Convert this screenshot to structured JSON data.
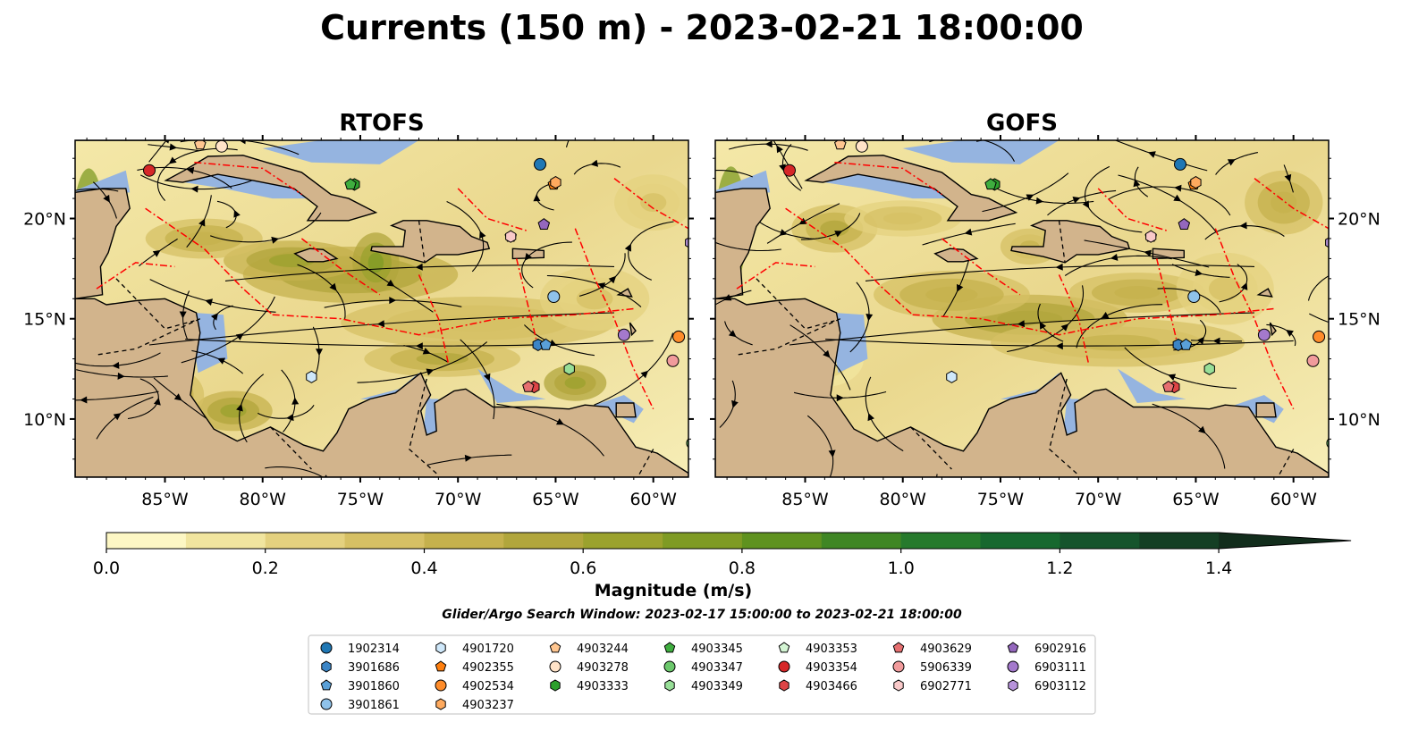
{
  "figure": {
    "title": "Currents (150 m) - 2023-02-21 18:00:00",
    "search_window": "Glider/Argo Search Window: 2023-02-17 15:00:00 to 2023-02-21 18:00:00"
  },
  "colors": {
    "land": "#d2b48c",
    "shallow_water": "#95b4e0",
    "eez_line": "#ff0000",
    "coastline": "#000000"
  },
  "chart_data": {
    "type": "streamplot",
    "panels": [
      {
        "title": "RTOFS"
      },
      {
        "title": "GOFS"
      }
    ],
    "x_ticks": [
      "85°W",
      "80°W",
      "75°W",
      "70°W",
      "65°W",
      "60°W"
    ],
    "x_tick_values": [
      -85,
      -80,
      -75,
      -70,
      -65,
      -60
    ],
    "y_ticks": [
      "20°N",
      "15°N",
      "10°N"
    ],
    "y_tick_values": [
      20,
      15,
      10
    ],
    "xlim": [
      -89.6,
      -58.2
    ],
    "ylim": [
      7.1,
      23.9
    ],
    "colorbar": {
      "label": "Magnitude (m/s)",
      "range": [
        0,
        1.5
      ],
      "step": 0.1,
      "extend": "max",
      "ticks": [
        "0.0",
        "0.2",
        "0.4",
        "0.6",
        "0.8",
        "1.0",
        "1.2",
        "1.4"
      ],
      "tick_values": [
        0,
        0.2,
        0.4,
        0.6,
        0.8,
        1.0,
        1.2,
        1.4
      ],
      "colors": [
        "#fdf7c4",
        "#f1e59f",
        "#e4d17f",
        "#d6c064",
        "#c5b14d",
        "#b1a63c",
        "#9ba22d",
        "#7f9b24",
        "#5f921f",
        "#3f8624",
        "#267a2c",
        "#17682f",
        "#15542c",
        "#143f24",
        "#122d1c"
      ]
    },
    "floats": [
      {
        "id": "1902314",
        "marker": "circle",
        "color": "#1f77b4",
        "lon": -65.8,
        "lat": 22.7
      },
      {
        "id": "3901686",
        "marker": "hexagon",
        "color": "#3b85c6",
        "lon": -65.9,
        "lat": 13.7
      },
      {
        "id": "3901860",
        "marker": "pentagon",
        "color": "#5aa0d8",
        "lon": -65.5,
        "lat": 13.7
      },
      {
        "id": "3901861",
        "marker": "circle",
        "color": "#8fc2ea",
        "lon": -65.1,
        "lat": 16.1
      },
      {
        "id": "4901720",
        "marker": "hexagon",
        "color": "#cfe8fa",
        "lon": -77.5,
        "lat": 12.1
      },
      {
        "id": "4902355",
        "marker": "pentagon",
        "color": "#ff7f0e",
        "lon": -65.1,
        "lat": 21.7
      },
      {
        "id": "4902534",
        "marker": "circle",
        "color": "#ff8c2a",
        "lon": -58.7,
        "lat": 14.1
      },
      {
        "id": "4903237",
        "marker": "hexagon",
        "color": "#ffaa5e",
        "lon": -65.0,
        "lat": 21.8
      },
      {
        "id": "4903244",
        "marker": "pentagon",
        "color": "#ffc690",
        "lon": -83.2,
        "lat": 23.7
      },
      {
        "id": "4903278",
        "marker": "circle",
        "color": "#ffe3c8",
        "lon": -82.1,
        "lat": 23.6
      },
      {
        "id": "4903333",
        "marker": "hexagon",
        "color": "#2ca02c",
        "lon": -75.3,
        "lat": 21.7
      },
      {
        "id": "4903345",
        "marker": "pentagon",
        "color": "#3fae3f",
        "lon": -75.5,
        "lat": 21.7
      },
      {
        "id": "4903347",
        "marker": "circle",
        "color": "#6cc86c",
        "lon": -58.0,
        "lat": 8.8
      },
      {
        "id": "4903349",
        "marker": "hexagon",
        "color": "#98df98",
        "lon": -64.3,
        "lat": 12.5
      },
      {
        "id": "4903353",
        "marker": "pentagon",
        "color": "#d4f5d4",
        "lon": -67.3,
        "lat": 19.1
      },
      {
        "id": "4903354",
        "marker": "circle",
        "color": "#d62728",
        "lon": -85.8,
        "lat": 22.4
      },
      {
        "id": "4903466",
        "marker": "hexagon",
        "color": "#dd4446",
        "lon": -66.1,
        "lat": 11.6
      },
      {
        "id": "4903629",
        "marker": "pentagon",
        "color": "#e66f70",
        "lon": -66.4,
        "lat": 11.6
      },
      {
        "id": "5906339",
        "marker": "circle",
        "color": "#f19b9c",
        "lon": -59.0,
        "lat": 12.9
      },
      {
        "id": "6902771",
        "marker": "hexagon",
        "color": "#f9c9c9",
        "lon": -67.3,
        "lat": 19.1
      },
      {
        "id": "6902916",
        "marker": "pentagon",
        "color": "#9467bd",
        "lon": -65.6,
        "lat": 19.7
      },
      {
        "id": "6903111",
        "marker": "circle",
        "color": "#a479cc",
        "lon": -61.5,
        "lat": 14.2
      },
      {
        "id": "6903112",
        "marker": "hexagon",
        "color": "#b793db",
        "lon": -58.1,
        "lat": 18.8
      }
    ]
  }
}
